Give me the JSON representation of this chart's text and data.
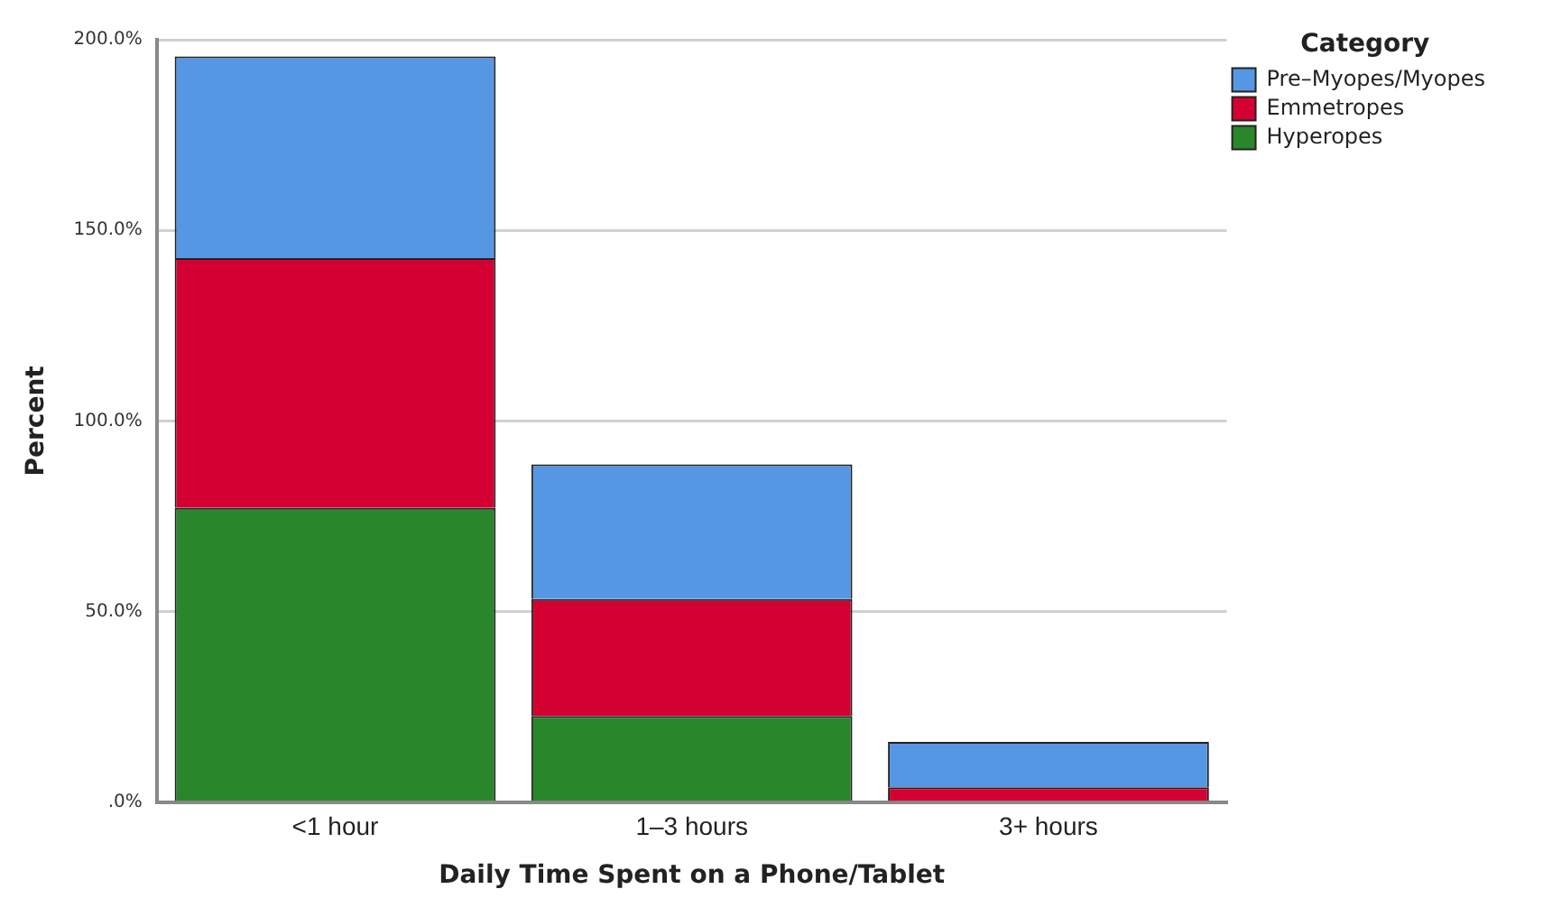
{
  "chart_data": {
    "type": "bar",
    "stacked": true,
    "xlabel": "Daily Time Spent on a Phone/Tablet",
    "ylabel": "Percent",
    "legend_title": "Category",
    "legend": "top right",
    "grid": "y",
    "categories": [
      "<1 hour",
      "1–3 hours",
      "3+ hours"
    ],
    "series": [
      {
        "name": "Hyperopes",
        "color": "#2a862a",
        "values": [
          77.2,
          22.6,
          0
        ]
      },
      {
        "name": "Emmetropes",
        "color": "#d50032",
        "values": [
          65.5,
          30.7,
          3.9
        ]
      },
      {
        "name": "Pre–Myopes/Myopes",
        "color": "#5597e3",
        "values": [
          52.9,
          35.3,
          11.9
        ]
      }
    ],
    "ylim": [
      0,
      200
    ],
    "yticks": [
      {
        "value": 0,
        "label": ".0%"
      },
      {
        "value": 50,
        "label": "50.0%"
      },
      {
        "value": 100,
        "label": "100.0%"
      },
      {
        "value": 150,
        "label": "150.0%"
      },
      {
        "value": 200,
        "label": "200.0%"
      }
    ]
  }
}
